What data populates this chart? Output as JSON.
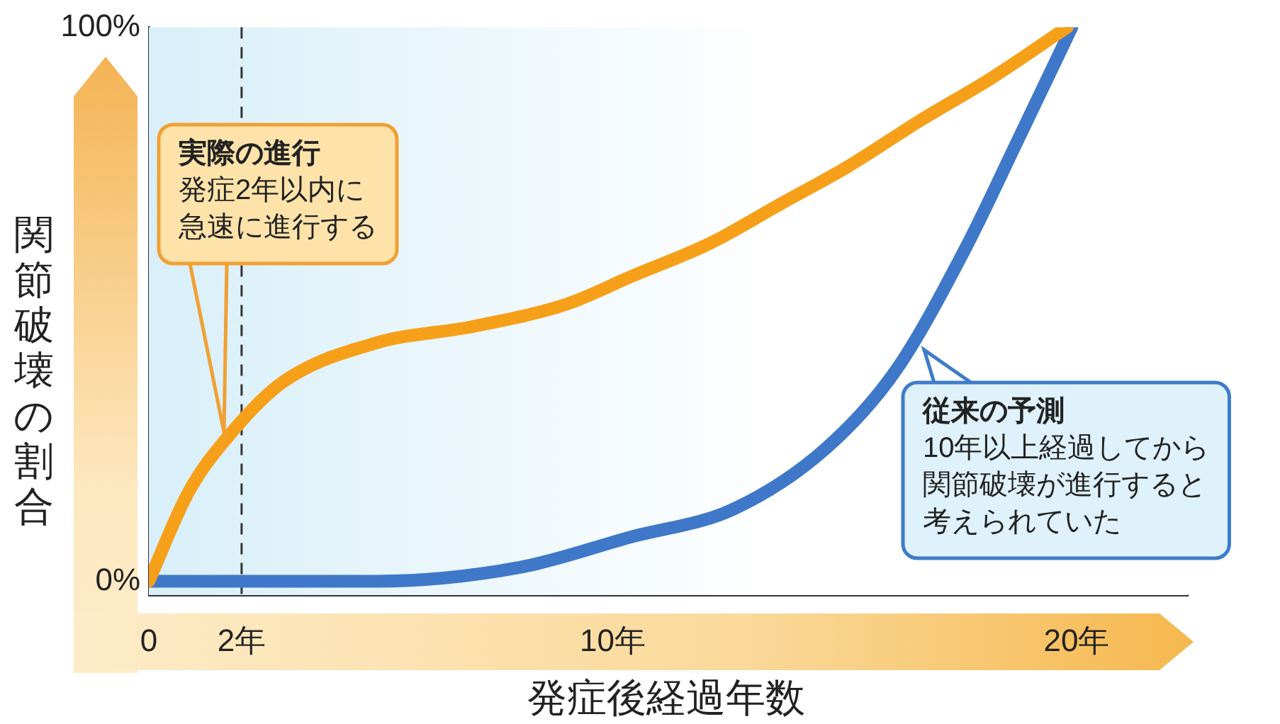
{
  "chart_data": {
    "type": "line",
    "xlabel": "発症後経過年数",
    "ylabel": "関節破壊の割合",
    "xlim": [
      0,
      22.4
    ],
    "ylim": [
      -2.5,
      100
    ],
    "xticks": [
      0,
      {
        "value": 2,
        "label": "2年"
      },
      {
        "value": 10,
        "label": "10年"
      },
      {
        "value": 20,
        "label": "20年"
      }
    ],
    "yticks": [
      {
        "value": 0,
        "label": "0%"
      },
      {
        "value": 100,
        "label": "100%"
      }
    ],
    "grid": false,
    "legend": false,
    "marker": "none",
    "line_style": "solid",
    "series": [
      {
        "color": "#f6a01a",
        "x": [
          0,
          0.85,
          1.8,
          2.9,
          4.9,
          7.0,
          9.0,
          10.4,
          12.1,
          13.6,
          15.1,
          16.6,
          18.2,
          19.8
        ],
        "values": [
          0,
          16,
          27,
          36,
          43,
          46,
          50,
          55,
          61,
          68,
          75,
          83,
          91,
          100
        ]
      },
      {
        "color": "#3f78c8",
        "x": [
          0,
          4.9,
          8,
          10.4,
          12.6,
          14.6,
          16.1,
          17.6,
          18.7,
          19.9
        ],
        "values": [
          0,
          0,
          2.5,
          8,
          13,
          24,
          38,
          60,
          79,
          100
        ]
      }
    ],
    "ref_lines": [
      {
        "axis": "x",
        "value": 2,
        "color": "#333333",
        "line_style": "dashed"
      }
    ],
    "annotations": [
      "実際の進行",
      "発症2年以内に急速に進行する",
      "従来の予測",
      "10年以上経過してから関節破壊が進行すると考えられていた"
    ]
  }
}
